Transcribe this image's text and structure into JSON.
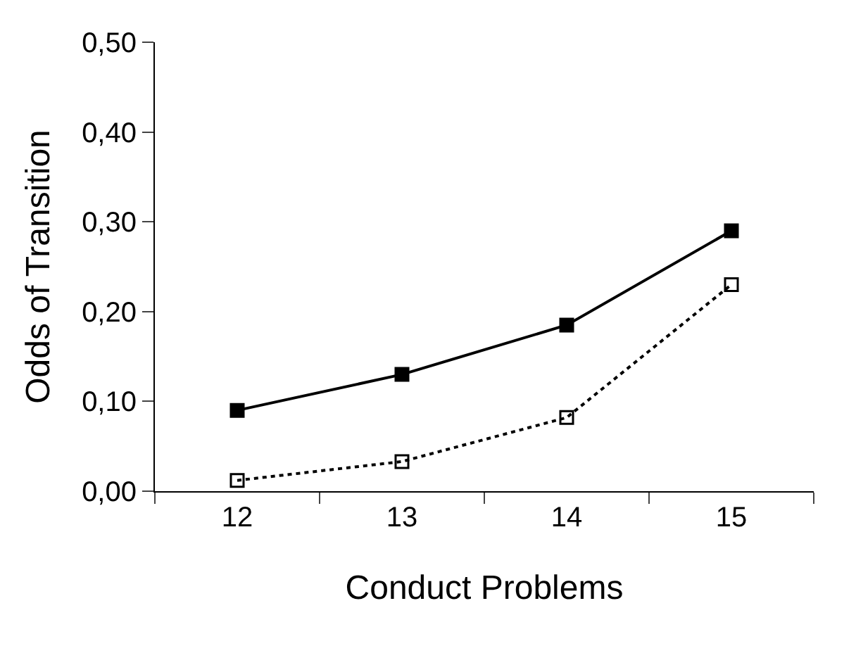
{
  "chart_data": {
    "type": "line",
    "xlabel": "Conduct Problems",
    "ylabel": "Odds of Transition",
    "categories": [
      "12",
      "13",
      "14",
      "15"
    ],
    "series": [
      {
        "color": "#000000",
        "values": [
          0.09,
          0.13,
          0.185,
          0.29
        ],
        "marker": "square",
        "line_style": "solid"
      },
      {
        "color": "#000000",
        "values": [
          0.012,
          0.033,
          0.082,
          0.23
        ],
        "marker": "square",
        "line_style": "dotted"
      }
    ],
    "ylim": [
      0,
      0.5
    ],
    "yticks": [
      {
        "value": 0,
        "label": "0,00"
      },
      {
        "value": 0.1,
        "label": "0,10"
      },
      {
        "value": 0.2,
        "label": "0,20"
      },
      {
        "value": 0.3,
        "label": "0,30"
      },
      {
        "value": 0.4,
        "label": "0,40"
      },
      {
        "value": 0.5,
        "label": "0,50"
      }
    ],
    "tick_labels": "xy"
  }
}
